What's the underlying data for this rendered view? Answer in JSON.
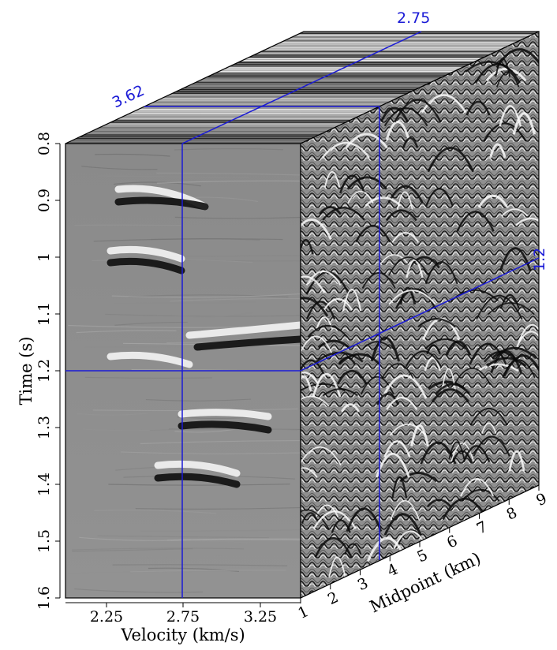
{
  "figure": {
    "time_axis": {
      "title": "Time (s)",
      "ticks": [
        "0.8",
        "0.9",
        "1",
        "1.1",
        "1.2",
        "1.3",
        "1.4",
        "1.5",
        "1.6"
      ],
      "range": [
        0.8,
        1.6
      ]
    },
    "velocity_axis": {
      "title": "Velocity (km/s)",
      "ticks": [
        "2.25",
        "2.75",
        "3.25"
      ]
    },
    "midpoint_axis": {
      "title": "Midpoint (km)",
      "ticks": [
        "1",
        "2",
        "3",
        "4",
        "5",
        "6",
        "7",
        "8",
        "9"
      ]
    },
    "slice_labels": {
      "velocity": "2.75",
      "midpoint": "3.62",
      "time": "1.2"
    },
    "colors": {
      "slice_lines": "#1a1ad6",
      "seismic_mid": "#8c8c8c",
      "frame": "#000000"
    }
  }
}
